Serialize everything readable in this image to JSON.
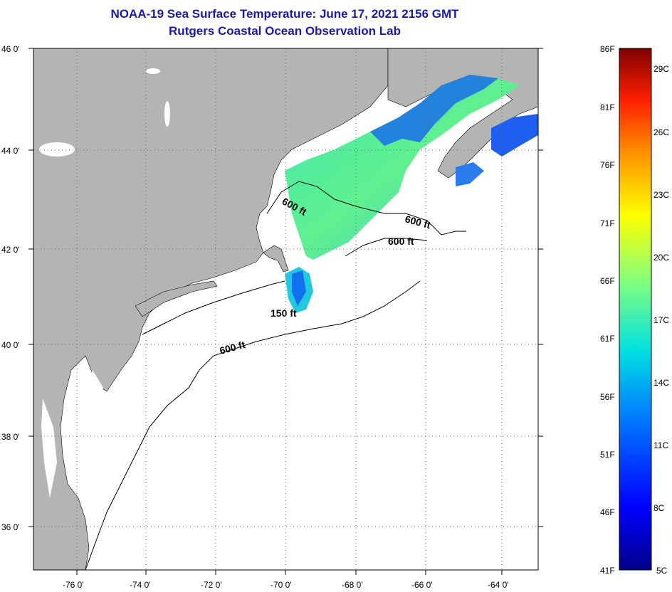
{
  "title": "NOAA-19 Sea Surface Temperature:  June 17, 2021 2156 GMT",
  "subtitle": "Rutgers Coastal Ocean Observation Lab",
  "lat_labels": [
    "46 0'",
    "44 0'",
    "42 0'",
    "40 0'",
    "38 0'",
    "36 0'"
  ],
  "lon_labels": [
    "-76 0'",
    "-74 0'",
    "-72 0'",
    "-70 0'",
    "-68 0'",
    "-66 0'",
    "-64 0'"
  ],
  "contour_labels": {
    "a": "600 ft",
    "b": "600 ft",
    "c": "600 ft",
    "d": "150 ft",
    "e": "600 ft"
  },
  "colorbar": {
    "f_labels": [
      "86F",
      "81F",
      "76F",
      "71F",
      "66F",
      "61F",
      "56F",
      "51F",
      "46F",
      "41F"
    ],
    "c_labels": [
      "29C",
      "26C",
      "23C",
      "20C",
      "17C",
      "14C",
      "11C",
      "8C",
      "5C"
    ]
  },
  "colors": {
    "land": "#b4b4b4",
    "title": "#1a1aa8"
  }
}
